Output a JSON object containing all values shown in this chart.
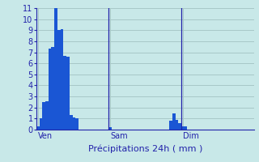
{
  "title": "Précipitations 24h ( mm )",
  "bar_color": "#1a56d4",
  "bg_color": "#c8e8e8",
  "grid_color": "#a8c8c8",
  "axis_color": "#2222aa",
  "text_color": "#2222aa",
  "ylim": [
    0,
    11
  ],
  "yticks": [
    0,
    1,
    2,
    3,
    4,
    5,
    6,
    7,
    8,
    9,
    10,
    11
  ],
  "bar_values": [
    0.3,
    1.0,
    2.5,
    2.6,
    7.3,
    7.5,
    11.0,
    9.0,
    9.1,
    6.7,
    6.6,
    1.3,
    1.1,
    1.0,
    0.0,
    0.0,
    0.0,
    0.0,
    0.0,
    0.0,
    0.0,
    0.0,
    0.0,
    0.0,
    0.2,
    0.0,
    0.0,
    0.0,
    0.0,
    0.0,
    0.0,
    0.0,
    0.0,
    0.0,
    0.0,
    0.0,
    0.0,
    0.0,
    0.0,
    0.0,
    0.0,
    0.0,
    0.0,
    0.0,
    0.8,
    1.5,
    0.9,
    0.6,
    0.3,
    0.3,
    0.0,
    0.0,
    0.0,
    0.0,
    0.0,
    0.0,
    0.0,
    0.0,
    0.0,
    0.0,
    0.0,
    0.0,
    0.0,
    0.0,
    0.0,
    0.0,
    0.0,
    0.0,
    0.0,
    0.0,
    0.0,
    0.0
  ],
  "day_labels": [
    "Ven",
    "Sam",
    "Dim"
  ],
  "day_positions": [
    0,
    24,
    48
  ],
  "vline_positions": [
    24,
    48
  ]
}
